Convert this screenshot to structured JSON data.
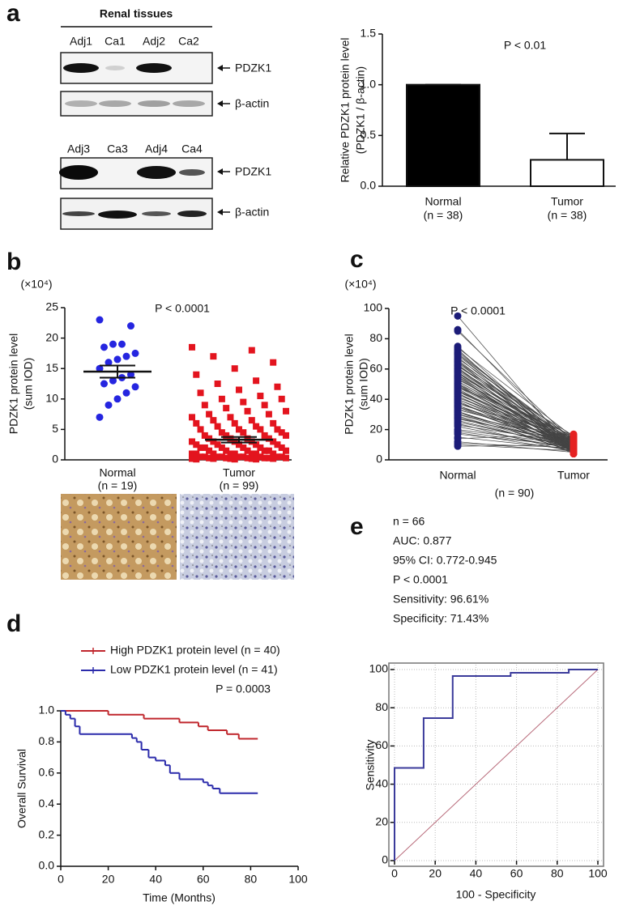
{
  "panel_labels": [
    "a",
    "b",
    "c",
    "d",
    "e"
  ],
  "blot": {
    "title": "Renal tissues",
    "lanes": [
      [
        "Adj1",
        "Ca1",
        "Adj2",
        "Ca2"
      ],
      [
        "Adj3",
        "Ca3",
        "Adj4",
        "Ca4"
      ]
    ],
    "bands": [
      "PDZK1",
      "β-actin",
      "PDZK1",
      "β-actin"
    ]
  },
  "chart_data": [
    {
      "type": "bar",
      "annotation": "P < 0.01",
      "ylabel": [
        "Relative PDZK1 protein level",
        "(PDZK1 / β-actin)"
      ],
      "categories": [
        "Normal",
        "Tumor"
      ],
      "category_notes": [
        "(n = 38)",
        "(n = 38)"
      ],
      "values": [
        1.0,
        0.26
      ],
      "errors": [
        0,
        0.26
      ],
      "colors": [
        "#000000",
        "#ffffff"
      ],
      "ylim": [
        0,
        1.5
      ],
      "yticks": [
        {
          "value": 0,
          "label": "0.0"
        },
        {
          "value": 0.5,
          "label": "0.5"
        },
        {
          "value": 1,
          "label": "1.0"
        },
        {
          "value": 1.5,
          "label": "1.5"
        }
      ]
    },
    {
      "type": "dot",
      "unit": "(×10⁴)",
      "annotation": "P < 0.0001",
      "ylabel": [
        "PDZK1 protein level",
        "(sum IOD)"
      ],
      "groups": [
        {
          "name": "Normal",
          "note": "(n = 19)",
          "color": "#2525e0",
          "marker": "circle",
          "values": [
            23,
            22,
            19,
            19,
            18.5,
            17.5,
            17,
            16.5,
            16,
            15,
            14,
            13.5,
            13,
            12.5,
            12,
            11,
            10,
            9,
            7
          ],
          "mean": 14.5,
          "sem": 1.0
        },
        {
          "name": "Tumor",
          "note": "(n = 99)",
          "color": "#e3141e",
          "marker": "square",
          "values": [
            18.5,
            18,
            17,
            16,
            15,
            14,
            13,
            12.5,
            12,
            11.5,
            11,
            10.5,
            10,
            10,
            9.5,
            9,
            9,
            8.5,
            8,
            8,
            7.5,
            7.5,
            7,
            7,
            6.5,
            6.5,
            6,
            6,
            6,
            5.5,
            5.5,
            5,
            5,
            5,
            5,
            4.5,
            4.5,
            4.5,
            4,
            4,
            4,
            4,
            3.5,
            3.5,
            3.5,
            3.5,
            3,
            3,
            3,
            3,
            3,
            2.5,
            2.5,
            2.5,
            2.5,
            2.5,
            2,
            2,
            2,
            2,
            2,
            2,
            1.5,
            1.5,
            1.5,
            1.5,
            1.5,
            1.5,
            1,
            1,
            1,
            1,
            1,
            1,
            1,
            1,
            0.5,
            0.5,
            0.5,
            0.5,
            0.5,
            0.5,
            0.5,
            0.5,
            0.5,
            0.3,
            0.3,
            0.3,
            0.3,
            0.3,
            0.3,
            0.2,
            0.2,
            0.2,
            0.2,
            0.2,
            0.1,
            0.1,
            0.1
          ],
          "mean": 3.3,
          "sem": 0.45
        }
      ],
      "ylim": [
        0,
        25
      ],
      "yticks": [
        0,
        5,
        10,
        15,
        20,
        25
      ]
    },
    {
      "type": "paired",
      "unit": "(×10⁴)",
      "annotation": "P < 0.0001",
      "ylabel": [
        "PDZK1 protein level",
        "(sum IOD)"
      ],
      "categories": [
        "Normal",
        "Tumor"
      ],
      "note": "(n = 90)",
      "colors": [
        "#1c1c78",
        "#e52222"
      ],
      "line_color": "#444444",
      "values": [
        [
          95,
          86,
          85,
          75,
          74,
          73,
          72,
          71,
          70,
          70,
          69,
          68,
          67,
          66,
          65,
          65,
          64,
          63,
          62,
          62,
          61,
          60,
          60,
          59,
          58,
          58,
          57,
          56,
          56,
          55,
          55,
          54,
          54,
          53,
          52,
          52,
          51,
          50,
          50,
          49,
          49,
          48,
          48,
          47,
          46,
          46,
          45,
          45,
          44,
          44,
          43,
          42,
          42,
          41,
          40,
          40,
          39,
          38,
          38,
          37,
          36,
          36,
          35,
          35,
          34,
          33,
          32,
          32,
          31,
          30,
          30,
          29,
          28,
          28,
          27,
          26,
          25,
          24,
          23,
          22,
          20,
          19,
          18,
          17,
          15,
          14,
          12,
          11,
          10,
          9
        ],
        [
          5,
          8,
          12,
          6,
          15,
          4,
          9,
          11,
          7,
          13,
          10,
          6,
          14,
          8,
          5,
          12,
          9,
          7,
          16,
          11,
          6,
          13,
          8,
          10,
          4,
          9,
          12,
          7,
          15,
          5,
          11,
          8,
          6,
          14,
          9,
          10,
          7,
          13,
          5,
          12,
          8,
          16,
          9,
          6,
          11,
          7,
          14,
          10,
          5,
          8,
          12,
          9,
          6,
          13,
          7,
          10,
          4,
          11,
          8,
          15,
          9,
          6,
          12,
          7,
          10,
          14,
          5,
          8,
          11,
          9,
          13,
          7,
          10,
          6,
          12,
          8,
          9,
          5,
          11,
          7,
          10,
          8,
          6,
          9,
          7,
          17,
          5,
          8,
          6,
          10
        ]
      ],
      "ylim": [
        0,
        100
      ],
      "yticks": [
        0,
        20,
        40,
        60,
        80,
        100
      ]
    },
    {
      "type": "survival",
      "annotation": "P = 0.0003",
      "xlabel": "Time (Months)",
      "ylabel": "Overall Survival",
      "series": [
        {
          "name": "High PDZK1 protein level (n = 40)",
          "color": "#c0272d",
          "x": [
            0,
            20,
            35,
            50,
            58,
            62,
            70,
            75,
            83
          ],
          "y": [
            1,
            0.975,
            0.95,
            0.925,
            0.9,
            0.875,
            0.85,
            0.82,
            0.82
          ]
        },
        {
          "name": "Low PDZK1 protein level (n = 41)",
          "color": "#2b2bab",
          "x": [
            0,
            2,
            4,
            6,
            8,
            30,
            32,
            34,
            37,
            40,
            44,
            46,
            50,
            60,
            62,
            64,
            67,
            83
          ],
          "y": [
            1,
            0.975,
            0.95,
            0.9,
            0.85,
            0.825,
            0.8,
            0.75,
            0.7,
            0.68,
            0.65,
            0.6,
            0.56,
            0.54,
            0.52,
            0.5,
            0.47,
            0.47
          ]
        }
      ],
      "xlim": [
        0,
        100
      ],
      "xticks": [
        0,
        20,
        40,
        60,
        80,
        100
      ],
      "ylim": [
        0,
        1
      ],
      "yticks": [
        {
          "value": 0,
          "label": "0.0"
        },
        {
          "value": 0.2,
          "label": "0.2"
        },
        {
          "value": 0.4,
          "label": "0.4"
        },
        {
          "value": 0.6,
          "label": "0.6"
        },
        {
          "value": 0.8,
          "label": "0.8"
        },
        {
          "value": 1,
          "label": "1.0"
        }
      ]
    },
    {
      "type": "roc",
      "stats": [
        "n = 66",
        "AUC: 0.877",
        "95% CI: 0.772-0.945",
        "P < 0.0001",
        "Sensitivity: 96.61%",
        "Specificity: 71.43%"
      ],
      "xlabel": "100 - Specificity",
      "ylabel": "Sensitivity",
      "color": "#3b3b9b",
      "reference_color": "#b86a7a",
      "grid": true,
      "x": [
        0,
        0,
        14.3,
        14.3,
        28.6,
        28.6,
        57.1,
        57.1,
        85.7,
        85.7,
        100
      ],
      "y": [
        0,
        48.5,
        48.5,
        74.6,
        74.6,
        96.6,
        96.6,
        98.3,
        98.3,
        100,
        100
      ],
      "xlim": [
        0,
        100
      ],
      "xticks": [
        0,
        20,
        40,
        60,
        80,
        100
      ],
      "ylim": [
        0,
        100
      ],
      "yticks": [
        0,
        20,
        40,
        60,
        80,
        100
      ]
    }
  ]
}
